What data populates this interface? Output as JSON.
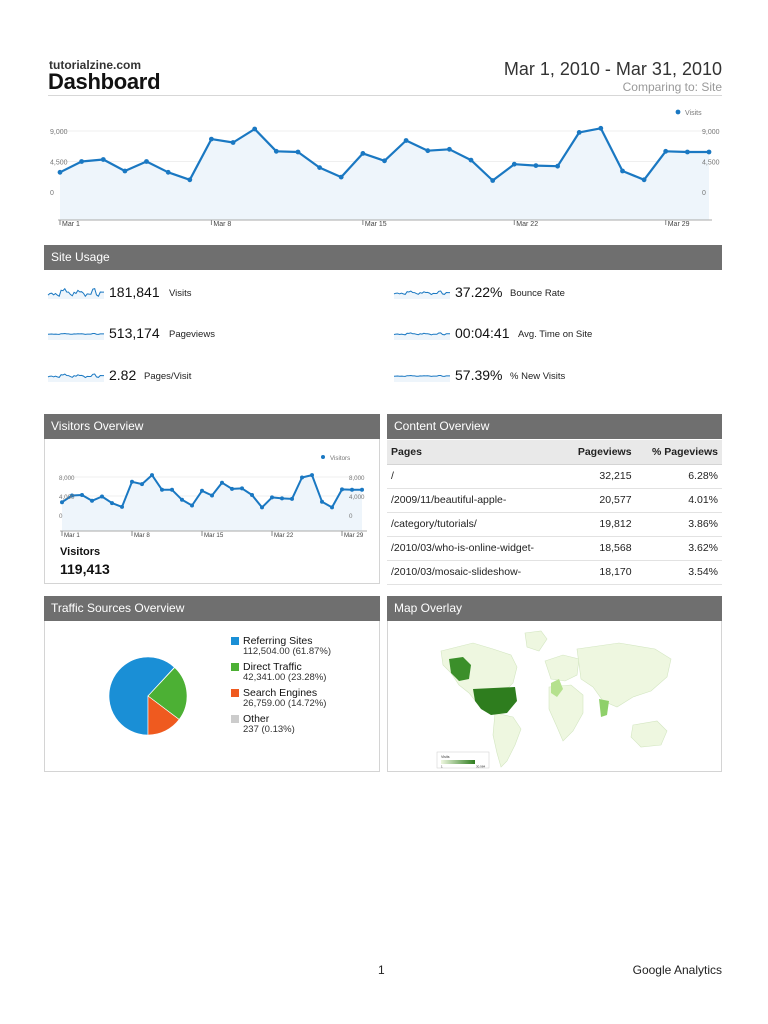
{
  "header": {
    "site_name": "tutorialzine.com",
    "title": "Dashboard",
    "date_range": "Mar 1, 2010 - Mar 31, 2010",
    "comparing": "Comparing to: Site"
  },
  "colors": {
    "line": "#1a78c2",
    "area": "#eef5fb",
    "panel_bar": "#6f6f6f",
    "referring": "#1a8fd6",
    "direct": "#4cb034",
    "search": "#ef5a1f",
    "other": "#cccccc"
  },
  "chart_data": [
    {
      "type": "area",
      "title": "",
      "legend": "Visits",
      "legend_position": "top-right",
      "x_ticks": [
        "Mar 1",
        "Mar 8",
        "Mar 15",
        "Mar 22",
        "Mar 29"
      ],
      "y_ticks": [
        "9,000",
        "4,500",
        "0"
      ],
      "ylim": [
        0,
        9000
      ],
      "series": [
        {
          "name": "Visits",
          "values": [
            2900,
            4500,
            4800,
            3100,
            4500,
            2900,
            1800,
            7800,
            7300,
            9300,
            6000,
            5900,
            3600,
            2200,
            5700,
            4600,
            7600,
            6100,
            6300,
            4700,
            1700,
            4100,
            3900,
            3800,
            8800,
            9400,
            3100,
            1800,
            6000,
            5900,
            5900
          ]
        }
      ]
    },
    {
      "type": "area",
      "title": "",
      "legend": "Visitors",
      "legend_position": "top-right",
      "x_ticks": [
        "Mar 1",
        "Mar 8",
        "Mar 15",
        "Mar 22",
        "Mar 29"
      ],
      "y_ticks": [
        "8,000",
        "4,000",
        "0"
      ],
      "ylim": [
        0,
        8000
      ],
      "series": [
        {
          "name": "Visitors",
          "values": [
            2700,
            4100,
            4200,
            3000,
            3900,
            2500,
            1700,
            7000,
            6500,
            8400,
            5300,
            5300,
            3200,
            2000,
            5100,
            4100,
            6800,
            5500,
            5600,
            4200,
            1600,
            3700,
            3500,
            3400,
            7900,
            8400,
            2800,
            1600,
            5400,
            5300,
            5300
          ]
        }
      ]
    },
    {
      "type": "pie",
      "title": "",
      "categories": [
        "Referring Sites",
        "Direct Traffic",
        "Search Engines",
        "Other"
      ],
      "values": [
        112504,
        42341,
        26759,
        237
      ],
      "percents": [
        61.87,
        23.28,
        14.72,
        0.13
      ],
      "legend_position": "right"
    }
  ],
  "site_usage": {
    "title": "Site Usage",
    "metrics": [
      {
        "value": "181,841",
        "label": "Visits"
      },
      {
        "value": "37.22%",
        "label": "Bounce Rate"
      },
      {
        "value": "513,174",
        "label": "Pageviews"
      },
      {
        "value": "00:04:41",
        "label": "Avg. Time on Site"
      },
      {
        "value": "2.82",
        "label": "Pages/Visit"
      },
      {
        "value": "57.39%",
        "label": "% New Visits"
      }
    ]
  },
  "visitors_overview": {
    "title": "Visitors Overview",
    "label": "Visitors",
    "value": "119,413"
  },
  "content_overview": {
    "title": "Content Overview",
    "columns": [
      "Pages",
      "Pageviews",
      "% Pageviews"
    ],
    "rows": [
      [
        "/",
        "32,215",
        "6.28%"
      ],
      [
        "/2009/11/beautiful-apple-",
        "20,577",
        "4.01%"
      ],
      [
        "/category/tutorials/",
        "19,812",
        "3.86%"
      ],
      [
        "/2010/03/who-is-online-widget-",
        "18,568",
        "3.62%"
      ],
      [
        "/2010/03/mosaic-slideshow-",
        "18,170",
        "3.54%"
      ]
    ]
  },
  "traffic_sources": {
    "title": "Traffic Sources Overview",
    "legend": [
      {
        "name": "Referring Sites",
        "value": "112,504.00 (61.87%)"
      },
      {
        "name": "Direct Traffic",
        "value": "42,341.00 (23.28%)"
      },
      {
        "name": "Search Engines",
        "value": "26,759.00 (14.72%)"
      },
      {
        "name": "Other",
        "value": "237 (0.13%)"
      }
    ]
  },
  "map_overlay": {
    "title": "Map Overlay",
    "scale_label": "Visits",
    "scale_min": "1",
    "scale_max": "30,984"
  },
  "footer": {
    "page": "1",
    "brand": "Google Analytics"
  }
}
